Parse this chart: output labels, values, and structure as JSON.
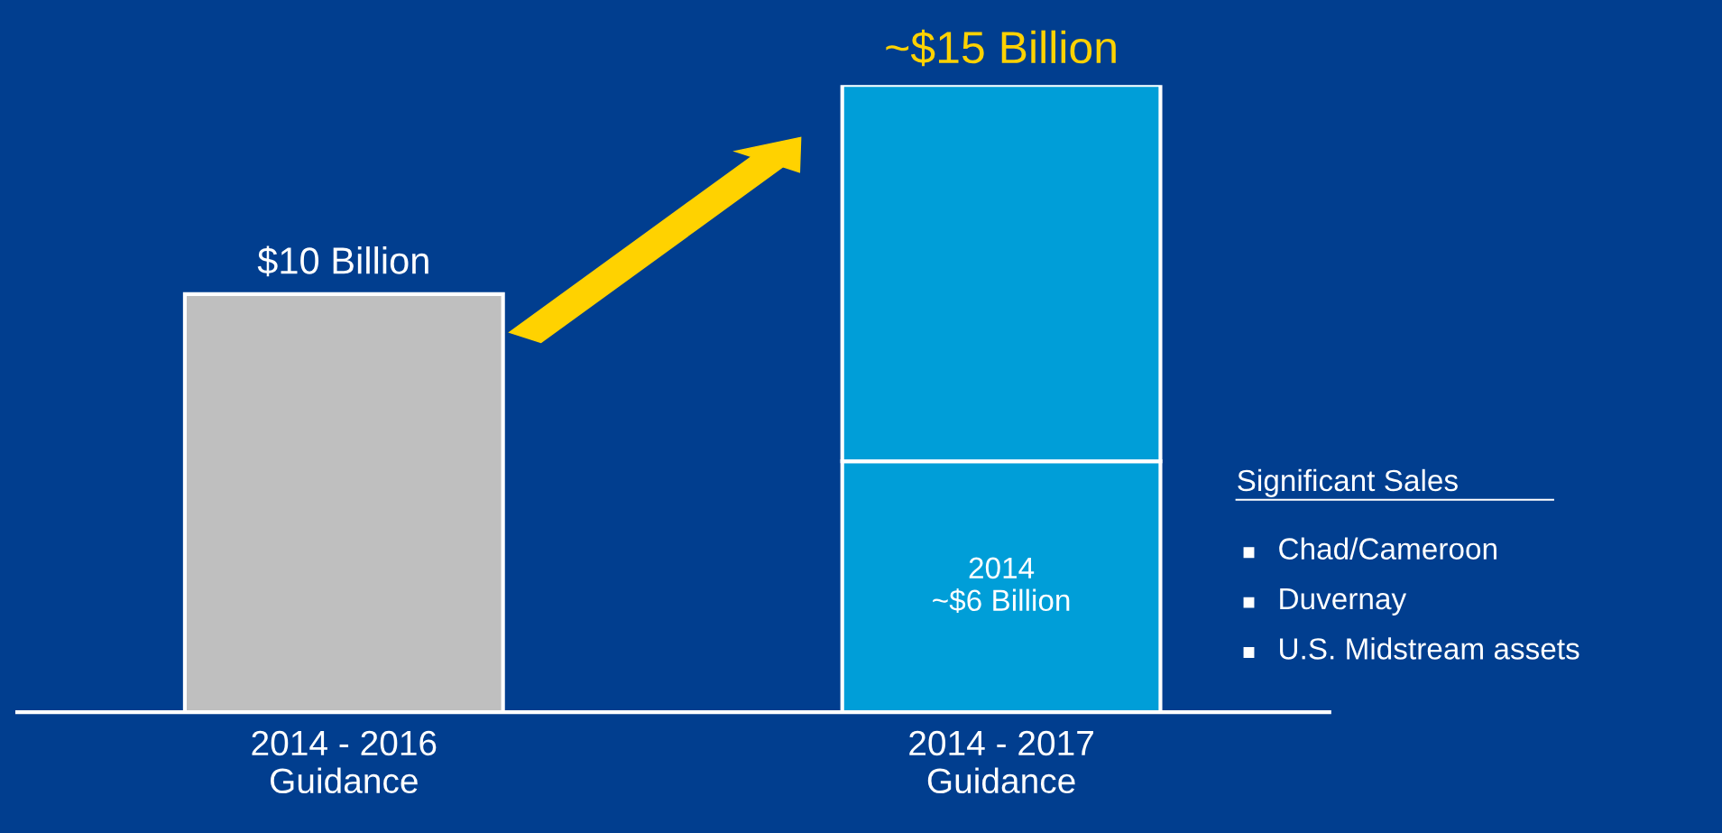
{
  "chart_data": {
    "type": "bar",
    "stacked": true,
    "categories": [
      "2014 - 2016\nGuidance",
      "2014 - 2017\nGuidance"
    ],
    "series": [
      {
        "colors": [
          "#bfbfbf",
          "#009ed8"
        ],
        "values": [
          10,
          6
        ],
        "value_labels": [
          null,
          "2014\n~$6 Billion"
        ]
      },
      {
        "color": "#009ed8",
        "values": [
          null,
          9
        ]
      }
    ],
    "totals": [
      "$10 Billion",
      "~$15 Billion"
    ],
    "ylim": [
      0,
      15
    ],
    "tick_labels": "x",
    "grid": false,
    "legend": false,
    "annotations": [
      "Significant Sales",
      "Chad/Cameroon",
      "Duvernay",
      "U.S. Midstream assets"
    ]
  }
}
